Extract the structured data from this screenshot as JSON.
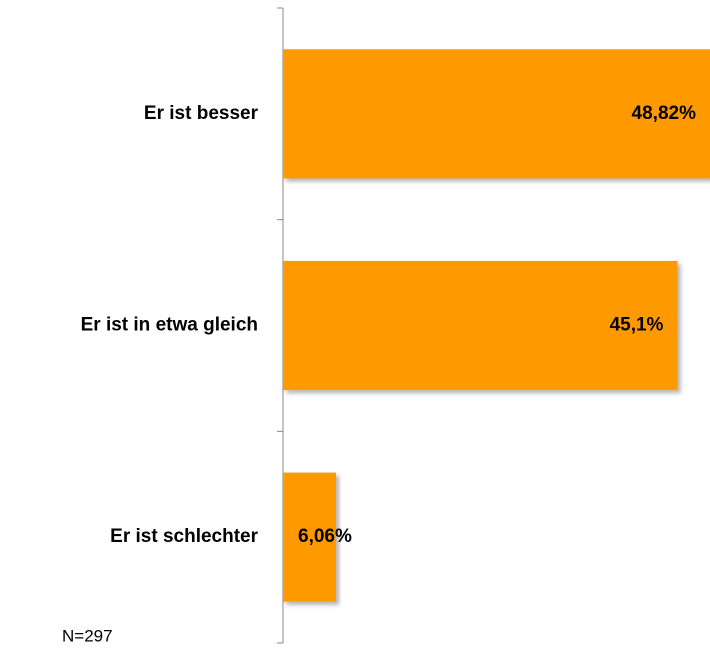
{
  "chart_data": {
    "type": "bar",
    "orientation": "horizontal",
    "categories": [
      "Er ist besser",
      "Er ist in etwa gleich",
      "Er ist schlechter"
    ],
    "values": [
      48.82,
      45.1,
      6.06
    ],
    "value_labels": [
      "48,82%",
      "45,1%",
      "6,06%"
    ],
    "color": "#ff9900",
    "note": "N=297"
  }
}
